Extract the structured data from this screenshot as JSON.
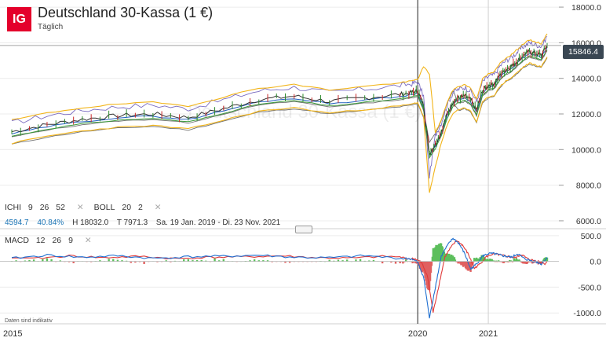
{
  "header": {
    "logo": "IG",
    "title": "Deutschland 30-Kassa (1 €)",
    "subtitle": "Täglich"
  },
  "price_badge": "15846.4",
  "indicators": {
    "ichi": [
      "ICHI",
      "9",
      "26",
      "52"
    ],
    "boll": [
      "BOLL",
      "20",
      "2"
    ],
    "macd": [
      "MACD",
      "12",
      "26",
      "9"
    ],
    "remove_glyph": "✕"
  },
  "stats": {
    "last": "4594.7",
    "pct": "40.84%",
    "high": "H 18032.0",
    "low": "T 7971.3",
    "range": "Sa. 19 Jan. 2019 - Di. 23 Nov. 2021"
  },
  "watermark": "Deutschland 30-Kassa (1 €)",
  "footnote": "Daten sind indikativ",
  "colors": {
    "brand": "#e4002b",
    "price": "#2f2f2f",
    "bollinger": "#f2b418",
    "ichimoku_fast": "#1f5fbf",
    "ichimoku_slow": "#3a9a3a",
    "cloud": "#6f6f6f",
    "long_band": "#7a6bc0",
    "macd_line": "#1f6fd1",
    "signal_line": "#e03a3a",
    "hist_pos": "#5cbf5c",
    "hist_neg": "#e06060"
  },
  "chart_data": [
    {
      "type": "line",
      "title": "Deutschland 30-Kassa (1 €)",
      "subtitle": "Täglich",
      "x_ticks": [
        "2015",
        "2020",
        "2021"
      ],
      "y_ticks": [
        "18000.0",
        "16000.0",
        "14000.0",
        "12000.0",
        "10000.0",
        "8000.0",
        "6000.0"
      ],
      "ylim": [
        5600,
        18400
      ],
      "last_price": "15846.4",
      "grid": true,
      "series": [
        {
          "name": "ICHI",
          "x": [
            "2014-04",
            "2014-10",
            "2015-04",
            "2015-10",
            "2016-04",
            "2016-10",
            "2017-04",
            "2017-10",
            "2018-04",
            "2018-10",
            "2019-04",
            "2019-10",
            "2019-12",
            "2020-01",
            "2020-02",
            "2020-03",
            "2020-04",
            "2020-05",
            "2020-06",
            "2020-07",
            "2020-08",
            "2020-09",
            "2020-10",
            "2020-11",
            "2020-12",
            "2021-01",
            "2021-02",
            "2021-03",
            "2021-04",
            "2021-05",
            "2021-06",
            "2021-07",
            "2021-08",
            "2021-09",
            "2021-10",
            "2021-11"
          ],
          "values": [
            11000,
            11400,
            11700,
            11900,
            12000,
            11800,
            12300,
            12800,
            13000,
            12700,
            12900,
            13100,
            13200,
            13300,
            12500,
            9800,
            10300,
            11000,
            12000,
            12700,
            12900,
            13000,
            12800,
            12200,
            13300,
            13600,
            13700,
            14200,
            14500,
            14700,
            15000,
            15300,
            15500,
            15400,
            15300,
            15850
          ]
        }
      ]
    },
    {
      "type": "bar",
      "title": "MACD 12 26 9",
      "y_ticks": [
        "500.0",
        "0.0",
        "-500.0",
        "-1000.0"
      ],
      "ylim": [
        -1180,
        620
      ],
      "series": [
        {
          "name": "MACD",
          "x": [
            "2014-04",
            "2014-10",
            "2015-04",
            "2015-10",
            "2016-04",
            "2016-10",
            "2017-04",
            "2017-10",
            "2018-04",
            "2018-10",
            "2019-04",
            "2019-10",
            "2019-12",
            "2020-01",
            "2020-02",
            "2020-03",
            "2020-04",
            "2020-05",
            "2020-06",
            "2020-07",
            "2020-08",
            "2020-09",
            "2020-10",
            "2020-11",
            "2020-12",
            "2021-01",
            "2021-02",
            "2021-03",
            "2021-04",
            "2021-05",
            "2021-06",
            "2021-07",
            "2021-08",
            "2021-09",
            "2021-10",
            "2021-11"
          ],
          "values": [
            60,
            120,
            80,
            110,
            60,
            90,
            100,
            120,
            80,
            70,
            110,
            60,
            50,
            -20,
            -300,
            -1100,
            -500,
            100,
            300,
            450,
            350,
            150,
            -150,
            -50,
            100,
            150,
            150,
            120,
            100,
            80,
            150,
            60,
            20,
            0,
            -50,
            80
          ]
        }
      ]
    }
  ]
}
